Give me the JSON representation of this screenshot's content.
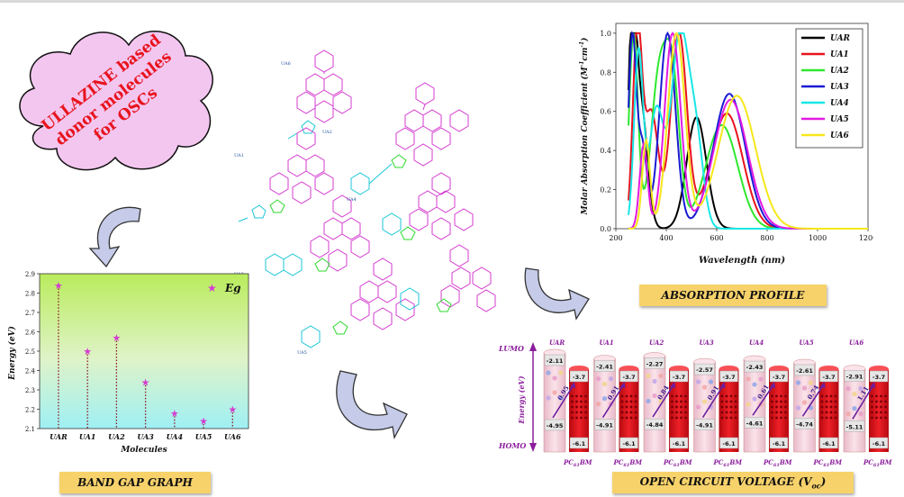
{
  "cloud": {
    "line1": "ULLAZINE based",
    "line2": "donor molecules",
    "line3": "for OSCs",
    "fill": "#f3c6f0",
    "text_color": "#e8131d"
  },
  "banners": {
    "band_gap": "BAND GAP GRAPH",
    "absorption": "ABSORPTION PROFILE",
    "voc": "OPEN CIRCUIT VOLTAGE (V",
    "voc_sub": "oc",
    "voc_close": ")"
  },
  "structures": {
    "labels": [
      "UA6",
      "UA2",
      "UA1",
      "UA4",
      "UA3",
      "UA5"
    ]
  },
  "band_gap_chart": {
    "type": "scatter",
    "ylabel": "Energy (eV)",
    "xlabel": "Molecules",
    "legend": "Eg",
    "categories": [
      "UAR",
      "UA1",
      "UA2",
      "UA3",
      "UA4",
      "UA5",
      "UA6"
    ],
    "values": [
      2.84,
      2.5,
      2.57,
      2.34,
      2.18,
      2.14,
      2.2
    ],
    "ylim": [
      2.1,
      2.9
    ],
    "yticks": [
      "2.1",
      "2.2",
      "2.3",
      "2.4",
      "2.5",
      "2.6",
      "2.7",
      "2.8",
      "2.9"
    ],
    "marker_color": "#d43bd0"
  },
  "chart_data": {
    "type": "line",
    "xlabel": "Wavelength (nm)",
    "ylabel": "Molar Absorption Coefficient (M",
    "ylabel_sup1": "-1",
    "ylabel_mid": "cm",
    "ylabel_sup2": "-1",
    "ylabel_close": ")",
    "xlim": [
      200,
      1200
    ],
    "ylim": [
      0.0,
      1.05
    ],
    "xticks": [
      "200",
      "400",
      "600",
      "800",
      "1000",
      "1200"
    ],
    "yticks": [
      "0.0",
      "0.2",
      "0.4",
      "0.6",
      "0.8",
      "1.0"
    ],
    "legend_position": "top-right",
    "series": [
      {
        "name": "UAR",
        "color": "#000000",
        "peaks": [
          [
            265,
            1.0,
            22
          ],
          [
            300,
            0.62,
            35
          ],
          [
            520,
            0.57,
            55
          ]
        ]
      },
      {
        "name": "UA1",
        "color": "#e8131d",
        "peaks": [
          [
            285,
            1.0,
            25
          ],
          [
            340,
            0.6,
            40
          ],
          [
            450,
            1.0,
            45
          ],
          [
            640,
            0.59,
            90
          ]
        ]
      },
      {
        "name": "UA2",
        "color": "#2ee82e",
        "peaks": [
          [
            270,
            1.0,
            25
          ],
          [
            370,
            0.75,
            45
          ],
          [
            425,
            0.72,
            40
          ],
          [
            620,
            0.53,
            90
          ]
        ]
      },
      {
        "name": "UA3",
        "color": "#1a1ad4",
        "peaks": [
          [
            265,
            0.98,
            22
          ],
          [
            305,
            0.42,
            25
          ],
          [
            405,
            1.0,
            45
          ],
          [
            650,
            0.69,
            90
          ]
        ]
      },
      {
        "name": "UA4",
        "color": "#19e6e6",
        "peaks": [
          [
            290,
            0.9,
            25
          ],
          [
            360,
            0.6,
            40
          ],
          [
            455,
            1.0,
            50
          ],
          [
            520,
            0.4,
            40
          ]
        ]
      },
      {
        "name": "UA5",
        "color": "#e21ae2",
        "peaks": [
          [
            310,
            0.43,
            22
          ],
          [
            425,
            1.0,
            45
          ],
          [
            655,
            0.66,
            95
          ]
        ]
      },
      {
        "name": "UA6",
        "color": "#f6e71a",
        "peaks": [
          [
            320,
            0.45,
            22
          ],
          [
            440,
            1.0,
            48
          ],
          [
            680,
            0.68,
            105
          ]
        ]
      }
    ]
  },
  "voc": {
    "lumo_label": "LUMO",
    "homo_label": "HOMO",
    "axis_label": "Energy (eV)",
    "acceptor_label": "PC",
    "acceptor_sub": "61",
    "acceptor_tail": "BM",
    "acceptor_lumo": "-3.7",
    "acceptor_homo": "-6.1",
    "donors": [
      {
        "name": "UAR",
        "lumo": "-2.11",
        "homo": "-4.95",
        "voc": "0.95"
      },
      {
        "name": "UA1",
        "lumo": "-2.41",
        "homo": "-4.91",
        "voc": "0.91"
      },
      {
        "name": "UA2",
        "lumo": "-2.27",
        "homo": "-4.84",
        "voc": "0.84"
      },
      {
        "name": "UA3",
        "lumo": "-2.57",
        "homo": "-4.91",
        "voc": "0.91"
      },
      {
        "name": "UA4",
        "lumo": "-2.43",
        "homo": "-4.61",
        "voc": "0.61"
      },
      {
        "name": "UA5",
        "lumo": "-2.61",
        "homo": "-4.74",
        "voc": "0.74"
      },
      {
        "name": "UA6",
        "lumo": "-2.91",
        "homo": "-5.11",
        "voc": "1.11"
      }
    ]
  }
}
